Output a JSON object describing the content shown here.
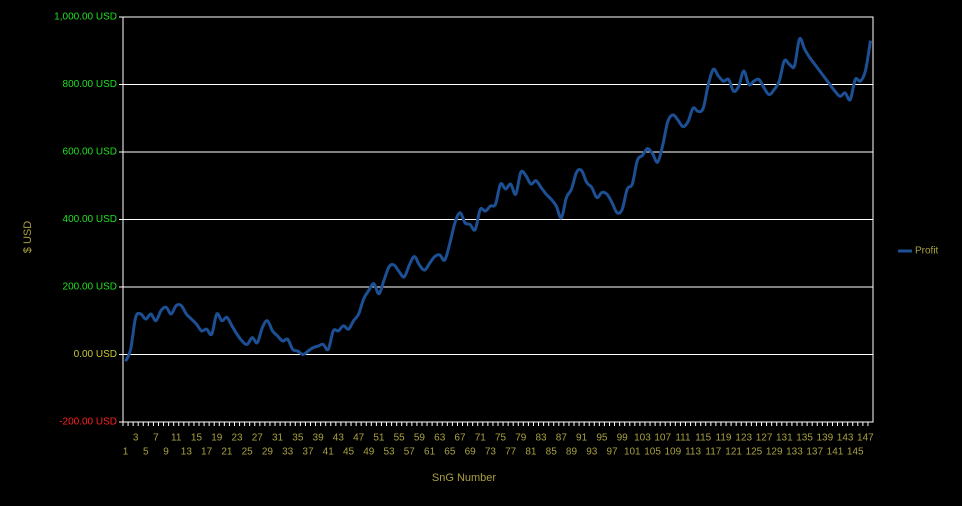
{
  "chart_data": {
    "type": "line",
    "x_label": "SnG Number",
    "y_label": "$ USD",
    "categories": [
      "1",
      null,
      "3",
      null,
      "5",
      null,
      "7",
      null,
      "9",
      null,
      "11",
      null,
      "13",
      null,
      "15",
      null,
      "17",
      null,
      "19",
      null,
      "21",
      null,
      "23",
      null,
      "25",
      null,
      "27",
      null,
      "29",
      null,
      "31",
      null,
      "33",
      null,
      "35",
      null,
      "37",
      null,
      "39",
      null,
      "41",
      null,
      "43",
      null,
      "45",
      null,
      "47",
      null,
      "49",
      null,
      "51",
      null,
      "53",
      null,
      "55",
      null,
      "57",
      null,
      "59",
      null,
      "61",
      null,
      "63",
      null,
      "65",
      null,
      "67",
      null,
      "69",
      null,
      "71",
      null,
      "73",
      null,
      "75",
      null,
      "77",
      null,
      "79",
      null,
      "81",
      null,
      "83",
      null,
      "85",
      null,
      "87",
      null,
      "89",
      null,
      "91",
      null,
      "93",
      null,
      "95",
      null,
      "97",
      null,
      "99",
      null,
      "101",
      null,
      "103",
      null,
      "105",
      null,
      "107",
      null,
      "109",
      null,
      "111",
      null,
      "113",
      null,
      "115",
      null,
      "117",
      null,
      "119",
      null,
      "121",
      null,
      "123",
      null,
      "125",
      null,
      "127",
      null,
      "129",
      null,
      "131",
      null,
      "133",
      null,
      "135",
      null,
      "137",
      null,
      "139",
      null,
      "141",
      null,
      "143",
      null,
      "145",
      null,
      "147",
      null
    ],
    "series": [
      {
        "name": "Profit",
        "color": "#1c4f93",
        "values": [
          -20,
          15,
          110,
          120,
          105,
          120,
          100,
          130,
          140,
          120,
          145,
          145,
          120,
          105,
          90,
          70,
          75,
          60,
          120,
          100,
          110,
          85,
          60,
          40,
          30,
          50,
          35,
          80,
          100,
          70,
          55,
          40,
          45,
          15,
          10,
          0,
          10,
          20,
          25,
          30,
          15,
          70,
          70,
          85,
          75,
          100,
          120,
          165,
          190,
          210,
          180,
          220,
          260,
          265,
          245,
          230,
          265,
          290,
          265,
          250,
          270,
          290,
          295,
          280,
          330,
          390,
          420,
          390,
          385,
          370,
          430,
          425,
          440,
          445,
          505,
          490,
          505,
          475,
          540,
          530,
          505,
          515,
          495,
          475,
          460,
          440,
          405,
          465,
          490,
          540,
          545,
          510,
          495,
          465,
          480,
          475,
          450,
          420,
          430,
          490,
          505,
          575,
          590,
          610,
          595,
          570,
          620,
          690,
          710,
          695,
          675,
          690,
          730,
          720,
          730,
          800,
          845,
          825,
          810,
          815,
          780,
          795,
          840,
          800,
          810,
          815,
          790,
          770,
          785,
          810,
          870,
          860,
          855,
          935,
          905,
          880,
          860,
          840,
          820,
          800,
          780,
          765,
          775,
          755,
          815,
          810,
          840,
          930
        ]
      }
    ],
    "ylim": [
      -200,
      1000
    ],
    "yticks": [
      {
        "value": -200,
        "label": "-200.00 USD"
      },
      {
        "value": 0,
        "label": "0.00 USD"
      },
      {
        "value": 200,
        "label": "200.00 USD"
      },
      {
        "value": 400,
        "label": "400.00 USD"
      },
      {
        "value": 600,
        "label": "600.00 USD"
      },
      {
        "value": 800,
        "label": "800.00 USD"
      },
      {
        "value": 1000,
        "label": "1,000.00 USD"
      }
    ],
    "ytick_colors": [
      "#ff2020",
      "#c8c832",
      "#20e020",
      "#20e020",
      "#20e020",
      "#20e020",
      "#20e020"
    ],
    "grid": true,
    "legend": "right"
  }
}
